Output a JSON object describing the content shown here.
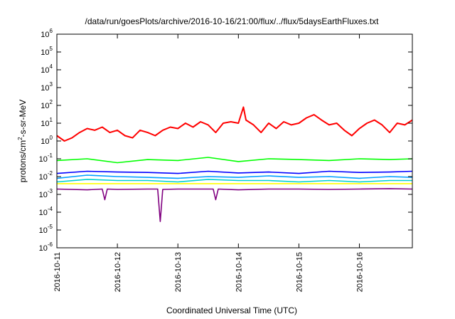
{
  "chart_data": {
    "type": "line",
    "title": "/data/run/goesPlots/archive/2016-10-16/21:00/flux/../flux/5daysEarthFluxes.txt",
    "xlabel": "Coordinated Universal Time (UTC)",
    "ylabel_parts": [
      "protons/cm",
      "2",
      "-s-sr-MeV"
    ],
    "y_scale": "log",
    "ylim": [
      1e-06,
      1000000.0
    ],
    "y_ticks": [
      {
        "exp": "-6",
        "value": 1e-06
      },
      {
        "exp": "-5",
        "value": 1e-05
      },
      {
        "exp": "-4",
        "value": 0.0001
      },
      {
        "exp": "-3",
        "value": 0.001
      },
      {
        "exp": "-2",
        "value": 0.01
      },
      {
        "exp": "-1",
        "value": 0.1
      },
      {
        "exp": "0",
        "value": 1
      },
      {
        "exp": "1",
        "value": 10.0
      },
      {
        "exp": "2",
        "value": 100.0
      },
      {
        "exp": "3",
        "value": 1000.0
      },
      {
        "exp": "4",
        "value": 10000.0
      },
      {
        "exp": "5",
        "value": 100000.0
      },
      {
        "exp": "6",
        "value": 1000000.0
      }
    ],
    "x_ticks": [
      "2016-10-11",
      "2016-10-12",
      "2016-10-13",
      "2016-10-14",
      "2016-10-15",
      "2016-10-16"
    ],
    "xlim": [
      "2016-10-11T00:00",
      "2016-10-16T21:00"
    ],
    "grid": false,
    "legend": "none",
    "series": [
      {
        "color": "#ff0000",
        "x": [
          "2016-10-11T00:00",
          "2016-10-11T03:00",
          "2016-10-11T06:00",
          "2016-10-11T09:00",
          "2016-10-11T12:00",
          "2016-10-11T15:00",
          "2016-10-11T18:00",
          "2016-10-11T21:00",
          "2016-10-12T00:00",
          "2016-10-12T03:00",
          "2016-10-12T06:00",
          "2016-10-12T09:00",
          "2016-10-12T12:00",
          "2016-10-12T15:00",
          "2016-10-12T18:00",
          "2016-10-12T21:00",
          "2016-10-13T00:00",
          "2016-10-13T03:00",
          "2016-10-13T06:00",
          "2016-10-13T09:00",
          "2016-10-13T12:00",
          "2016-10-13T15:00",
          "2016-10-13T18:00",
          "2016-10-13T21:00",
          "2016-10-14T00:00",
          "2016-10-14T02:00",
          "2016-10-14T03:00",
          "2016-10-14T06:00",
          "2016-10-14T09:00",
          "2016-10-14T12:00",
          "2016-10-14T15:00",
          "2016-10-14T18:00",
          "2016-10-14T21:00",
          "2016-10-15T00:00",
          "2016-10-15T03:00",
          "2016-10-15T06:00",
          "2016-10-15T09:00",
          "2016-10-15T12:00",
          "2016-10-15T15:00",
          "2016-10-15T18:00",
          "2016-10-15T21:00",
          "2016-10-16T00:00",
          "2016-10-16T03:00",
          "2016-10-16T06:00",
          "2016-10-16T09:00",
          "2016-10-16T12:00",
          "2016-10-16T15:00",
          "2016-10-16T18:00",
          "2016-10-16T21:00"
        ],
        "values": [
          2,
          1,
          1.5,
          3,
          5,
          4,
          6,
          3,
          4,
          2,
          1.5,
          4,
          3,
          2,
          4,
          6,
          5,
          10,
          6,
          12,
          8,
          3,
          10,
          12,
          10,
          80,
          15,
          8,
          3,
          10,
          5,
          12,
          8,
          10,
          20,
          30,
          15,
          8,
          10,
          4,
          2,
          5,
          10,
          15,
          8,
          3,
          10,
          8,
          15
        ]
      },
      {
        "color": "#00ff00",
        "x": [
          "2016-10-11T00:00",
          "2016-10-11T12:00",
          "2016-10-12T00:00",
          "2016-10-12T12:00",
          "2016-10-13T00:00",
          "2016-10-13T12:00",
          "2016-10-14T00:00",
          "2016-10-14T12:00",
          "2016-10-15T00:00",
          "2016-10-15T12:00",
          "2016-10-16T00:00",
          "2016-10-16T12:00",
          "2016-10-16T21:00"
        ],
        "values": [
          0.08,
          0.1,
          0.06,
          0.09,
          0.08,
          0.12,
          0.07,
          0.1,
          0.09,
          0.08,
          0.1,
          0.09,
          0.1
        ]
      },
      {
        "color": "#0000ff",
        "x": [
          "2016-10-11T00:00",
          "2016-10-11T12:00",
          "2016-10-12T00:00",
          "2016-10-12T12:00",
          "2016-10-13T00:00",
          "2016-10-13T12:00",
          "2016-10-14T00:00",
          "2016-10-14T12:00",
          "2016-10-15T00:00",
          "2016-10-15T12:00",
          "2016-10-16T00:00",
          "2016-10-16T12:00",
          "2016-10-16T21:00"
        ],
        "values": [
          0.015,
          0.02,
          0.018,
          0.017,
          0.015,
          0.02,
          0.016,
          0.018,
          0.015,
          0.02,
          0.017,
          0.018,
          0.02
        ]
      },
      {
        "color": "#00a0ff",
        "x": [
          "2016-10-11T00:00",
          "2016-10-11T12:00",
          "2016-10-12T00:00",
          "2016-10-12T12:00",
          "2016-10-13T00:00",
          "2016-10-13T12:00",
          "2016-10-14T00:00",
          "2016-10-14T12:00",
          "2016-10-15T00:00",
          "2016-10-15T12:00",
          "2016-10-16T00:00",
          "2016-10-16T12:00",
          "2016-10-16T21:00"
        ],
        "values": [
          0.008,
          0.012,
          0.01,
          0.009,
          0.008,
          0.01,
          0.009,
          0.011,
          0.009,
          0.01,
          0.008,
          0.01,
          0.009
        ]
      },
      {
        "color": "#00d0d0",
        "x": [
          "2016-10-11T00:00",
          "2016-10-11T12:00",
          "2016-10-12T00:00",
          "2016-10-12T12:00",
          "2016-10-13T00:00",
          "2016-10-13T12:00",
          "2016-10-14T00:00",
          "2016-10-14T12:00",
          "2016-10-15T00:00",
          "2016-10-15T12:00",
          "2016-10-16T00:00",
          "2016-10-16T12:00",
          "2016-10-16T21:00"
        ],
        "values": [
          0.005,
          0.007,
          0.006,
          0.006,
          0.005,
          0.007,
          0.006,
          0.006,
          0.005,
          0.006,
          0.005,
          0.006,
          0.006
        ]
      },
      {
        "color": "#ffff00",
        "x": [
          "2016-10-11T00:00",
          "2016-10-11T12:00",
          "2016-10-12T00:00",
          "2016-10-12T12:00",
          "2016-10-13T00:00",
          "2016-10-13T12:00",
          "2016-10-14T00:00",
          "2016-10-14T12:00",
          "2016-10-15T00:00",
          "2016-10-15T12:00",
          "2016-10-16T00:00",
          "2016-10-16T12:00",
          "2016-10-16T21:00"
        ],
        "values": [
          0.004,
          0.004,
          0.004,
          0.004,
          0.004,
          0.004,
          0.004,
          0.004,
          0.004,
          0.004,
          0.004,
          0.004,
          0.004
        ]
      },
      {
        "color": "#800080",
        "x": [
          "2016-10-11T00:00",
          "2016-10-11T12:00",
          "2016-10-11T18:00",
          "2016-10-11T19:00",
          "2016-10-11T20:00",
          "2016-10-12T00:00",
          "2016-10-12T12:00",
          "2016-10-12T16:00",
          "2016-10-12T17:00",
          "2016-10-12T18:00",
          "2016-10-13T00:00",
          "2016-10-13T12:00",
          "2016-10-13T14:00",
          "2016-10-13T15:00",
          "2016-10-13T16:00",
          "2016-10-14T00:00",
          "2016-10-14T12:00",
          "2016-10-15T00:00",
          "2016-10-15T12:00",
          "2016-10-16T00:00",
          "2016-10-16T12:00",
          "2016-10-16T21:00"
        ],
        "values": [
          0.002,
          0.0018,
          0.002,
          0.0005,
          0.002,
          0.0019,
          0.002,
          0.002,
          3e-05,
          0.0019,
          0.002,
          0.002,
          0.002,
          0.0005,
          0.002,
          0.0018,
          0.002,
          0.002,
          0.0019,
          0.002,
          0.0021,
          0.002
        ]
      }
    ]
  }
}
